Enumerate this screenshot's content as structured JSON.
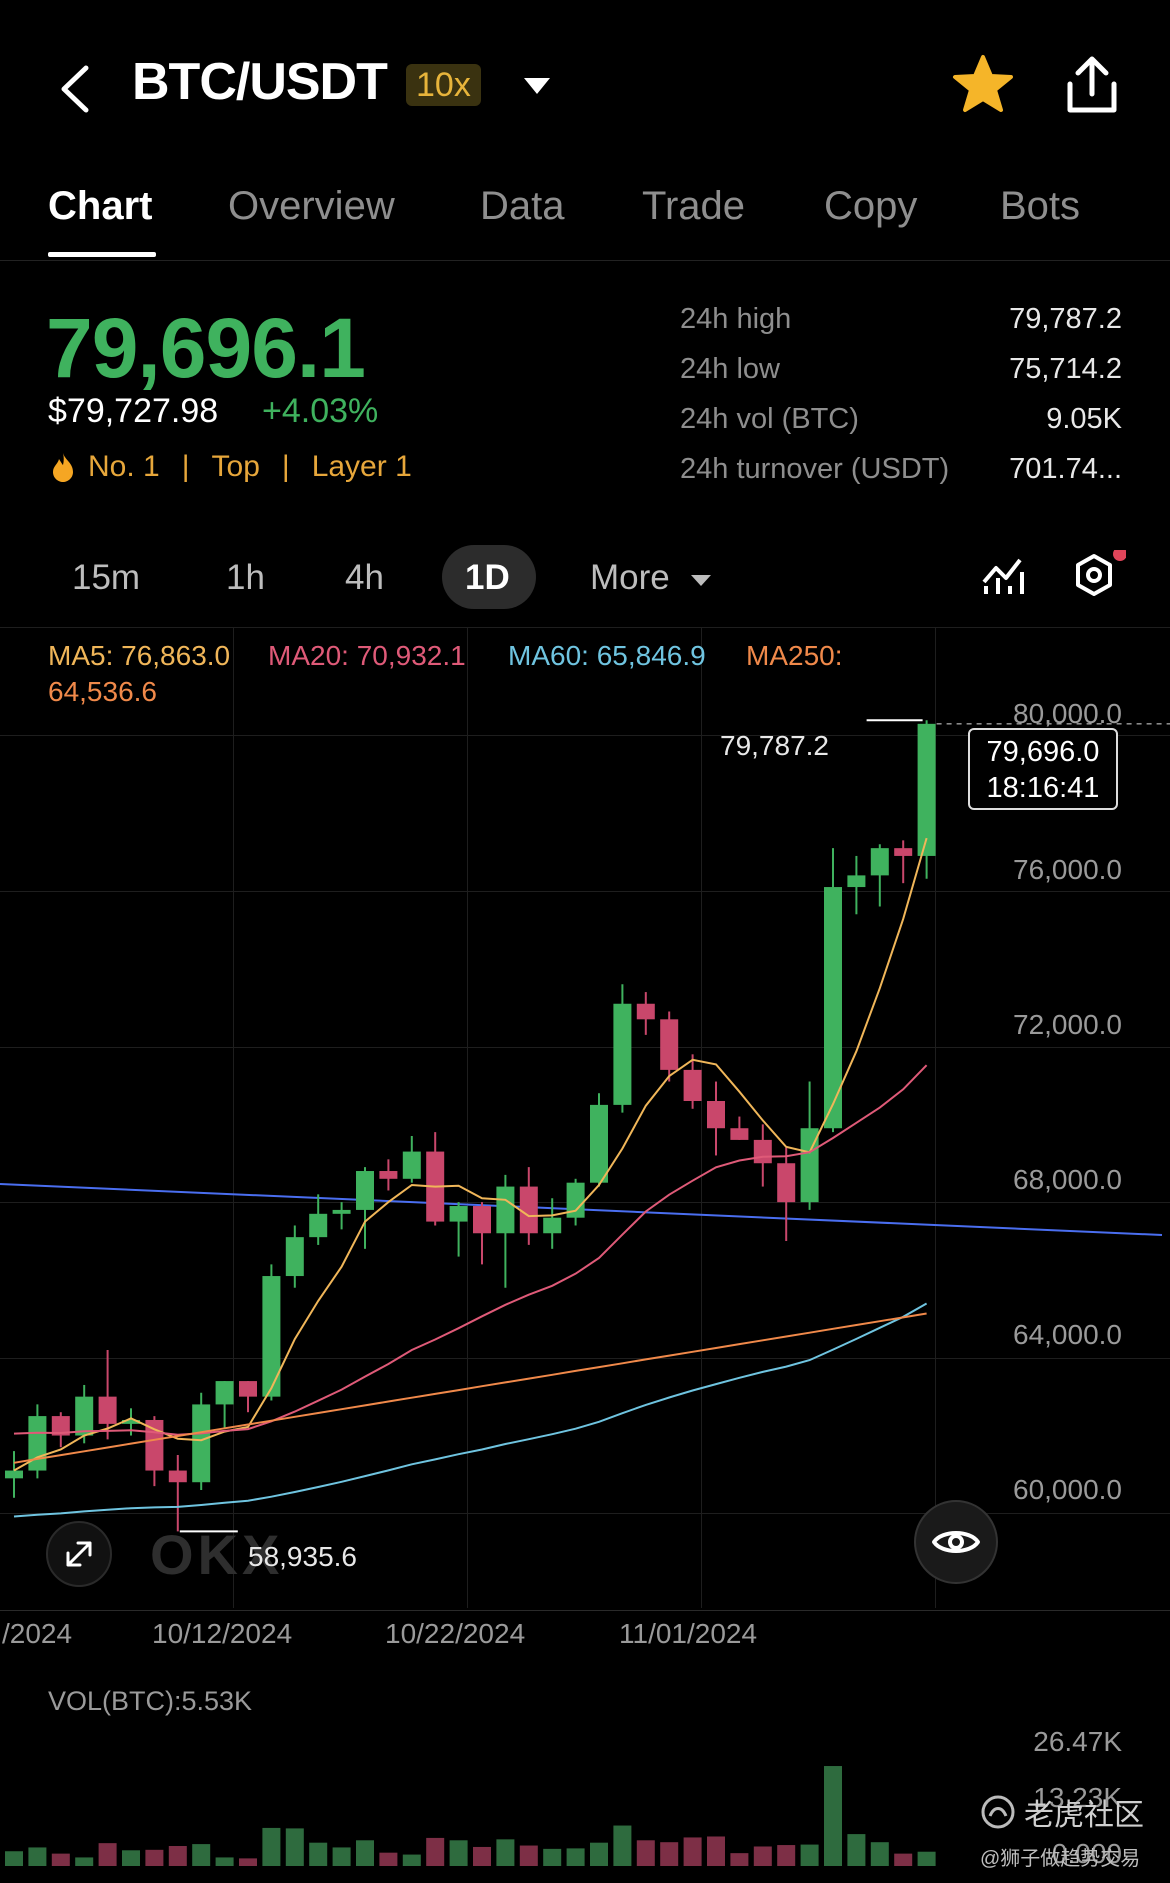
{
  "header": {
    "pair": "BTC/USDT",
    "leverage": "10x"
  },
  "tabs": [
    "Chart",
    "Overview",
    "Data",
    "Trade",
    "Copy",
    "Bots"
  ],
  "ticker": {
    "last_price": "79,696.1",
    "usd_price": "$79,727.98",
    "change": "+4.03%",
    "tag_rank": "No. 1",
    "tag_top": "Top",
    "tag_layer": "Layer 1",
    "sep": "|"
  },
  "stats": [
    {
      "label": "24h high",
      "value": "79,787.2"
    },
    {
      "label": "24h low",
      "value": "75,714.2"
    },
    {
      "label": "24h vol (BTC)",
      "value": "9.05K"
    },
    {
      "label": "24h turnover (USDT)",
      "value": "701.74..."
    }
  ],
  "timeframes": [
    "15m",
    "1h",
    "4h",
    "1D"
  ],
  "more_label": "More",
  "indicators": {
    "ma5": "MA5: 76,863.0",
    "ma20": "MA20: 70,932.1",
    "ma60": "MA60: 65,846.9",
    "ma250_a": "MA250:",
    "ma250_b": "64,536.6"
  },
  "chart": {
    "y_ticks": [
      "80,000.0",
      "76,000.0",
      "72,000.0",
      "68,000.0",
      "64,000.0",
      "60,000.0"
    ],
    "x_ticks": [
      "/2024",
      "10/12/2024",
      "10/22/2024",
      "11/01/2024"
    ],
    "high_marker": "79,787.2",
    "low_marker": "58,935.6",
    "current_price": "79,696.0",
    "countdown": "18:16:41",
    "watermark": "OKX"
  },
  "volume": {
    "label": "VOL(BTC):5.53K",
    "ticks": [
      "26.47K",
      "13.23K",
      "0.000"
    ]
  },
  "footer_watermark": {
    "brand": "老虎社区",
    "handle": "@狮子做趋势交易"
  },
  "colors": {
    "up": "#3fb25e",
    "down": "#c9476b",
    "ma5": "#f0b659",
    "ma20": "#df5a78",
    "ma60": "#6fc4e0",
    "ma250": "#f0894a",
    "trend": "#4a6ef0"
  },
  "chart_data": {
    "type": "candlestick",
    "interval": "1D",
    "y_range": [
      58935.6,
      79787.2
    ],
    "candles": [
      {
        "o": 60300,
        "h": 61000,
        "l": 59800,
        "c": 60500
      },
      {
        "o": 60500,
        "h": 62200,
        "l": 60300,
        "c": 61900
      },
      {
        "o": 61900,
        "h": 62000,
        "l": 61100,
        "c": 61400
      },
      {
        "o": 61400,
        "h": 62700,
        "l": 61200,
        "c": 62400
      },
      {
        "o": 62400,
        "h": 63600,
        "l": 61300,
        "c": 61700
      },
      {
        "o": 61700,
        "h": 62100,
        "l": 61400,
        "c": 61800
      },
      {
        "o": 61800,
        "h": 61900,
        "l": 60100,
        "c": 60500
      },
      {
        "o": 60500,
        "h": 60900,
        "l": 58936,
        "c": 60200
      },
      {
        "o": 60200,
        "h": 62500,
        "l": 60000,
        "c": 62200
      },
      {
        "o": 62200,
        "h": 62800,
        "l": 61600,
        "c": 62800
      },
      {
        "o": 62800,
        "h": 62800,
        "l": 62000,
        "c": 62400
      },
      {
        "o": 62400,
        "h": 65800,
        "l": 62300,
        "c": 65500
      },
      {
        "o": 65500,
        "h": 66800,
        "l": 65200,
        "c": 66500
      },
      {
        "o": 66500,
        "h": 67600,
        "l": 66300,
        "c": 67100
      },
      {
        "o": 67100,
        "h": 67400,
        "l": 66700,
        "c": 67200
      },
      {
        "o": 67200,
        "h": 68300,
        "l": 66200,
        "c": 68200
      },
      {
        "o": 68200,
        "h": 68500,
        "l": 67700,
        "c": 68000
      },
      {
        "o": 68000,
        "h": 69100,
        "l": 67900,
        "c": 68700
      },
      {
        "o": 68700,
        "h": 69200,
        "l": 66800,
        "c": 66900
      },
      {
        "o": 66900,
        "h": 67400,
        "l": 66000,
        "c": 67300
      },
      {
        "o": 67300,
        "h": 67400,
        "l": 65800,
        "c": 66600
      },
      {
        "o": 66600,
        "h": 68100,
        "l": 65200,
        "c": 67800
      },
      {
        "o": 67800,
        "h": 68300,
        "l": 66300,
        "c": 66600
      },
      {
        "o": 66600,
        "h": 67500,
        "l": 66200,
        "c": 67000
      },
      {
        "o": 67000,
        "h": 68000,
        "l": 66800,
        "c": 67900
      },
      {
        "o": 67900,
        "h": 70200,
        "l": 67800,
        "c": 69900
      },
      {
        "o": 69900,
        "h": 73000,
        "l": 69700,
        "c": 72500
      },
      {
        "o": 72500,
        "h": 72800,
        "l": 71700,
        "c": 72100
      },
      {
        "o": 72100,
        "h": 72300,
        "l": 70500,
        "c": 70800
      },
      {
        "o": 70800,
        "h": 71200,
        "l": 69800,
        "c": 70000
      },
      {
        "o": 70000,
        "h": 70500,
        "l": 68600,
        "c": 69300
      },
      {
        "o": 69300,
        "h": 69600,
        "l": 69000,
        "c": 69000
      },
      {
        "o": 69000,
        "h": 69400,
        "l": 67800,
        "c": 68400
      },
      {
        "o": 68400,
        "h": 68800,
        "l": 66400,
        "c": 67400
      },
      {
        "o": 67400,
        "h": 70500,
        "l": 67200,
        "c": 69300
      },
      {
        "o": 69300,
        "h": 76500,
        "l": 69200,
        "c": 75500
      },
      {
        "o": 75500,
        "h": 76300,
        "l": 74800,
        "c": 75800
      },
      {
        "o": 75800,
        "h": 76600,
        "l": 75000,
        "c": 76500
      },
      {
        "o": 76500,
        "h": 76700,
        "l": 75600,
        "c": 76300
      },
      {
        "o": 76300,
        "h": 79787,
        "l": 75714,
        "c": 79696
      }
    ],
    "ma5_last": 76863.0,
    "ma20_last": 70932.1,
    "ma60_last": 65846.9,
    "ma250_last": 64536.6,
    "volumes": [
      3.1,
      3.9,
      2.6,
      1.8,
      4.8,
      3.3,
      3.4,
      4.2,
      4.6,
      1.8,
      1.6,
      8.0,
      7.9,
      4.9,
      3.9,
      5.4,
      2.8,
      2.4,
      5.9,
      5.4,
      4.0,
      5.6,
      4.3,
      3.6,
      3.7,
      4.9,
      8.5,
      5.4,
      5.0,
      6.0,
      6.2,
      2.7,
      4.1,
      4.4,
      4.5,
      21.0,
      6.7,
      5.0,
      2.6,
      3.0
    ]
  }
}
